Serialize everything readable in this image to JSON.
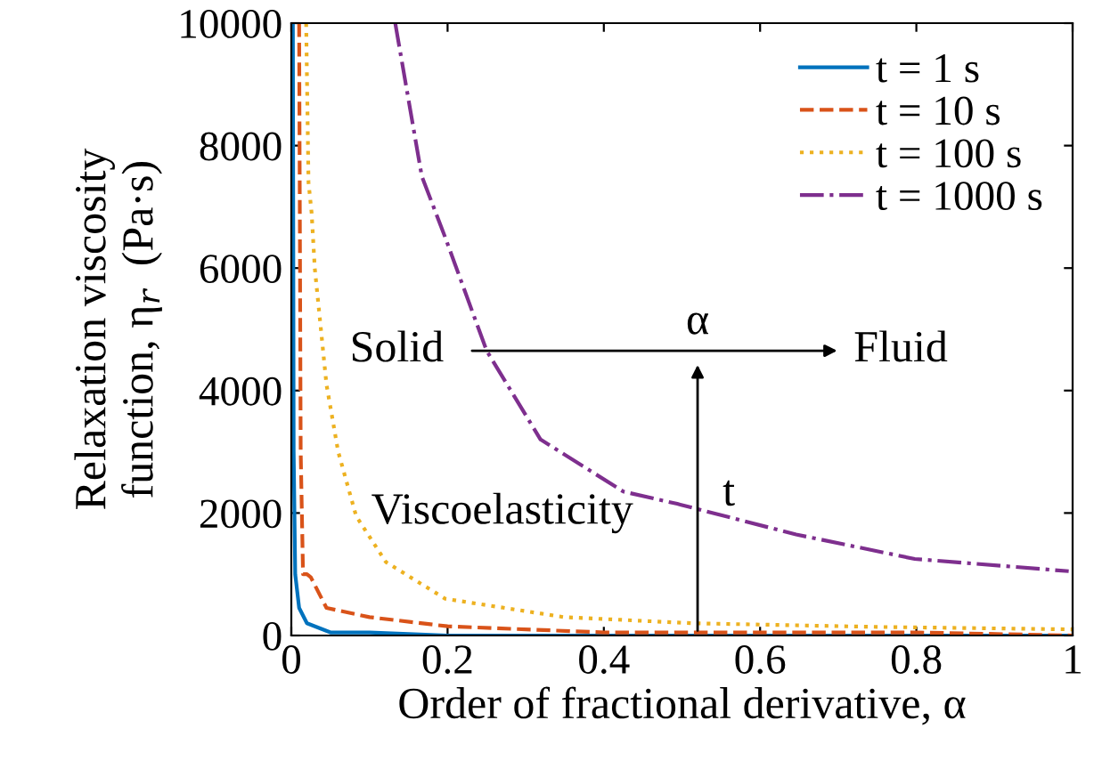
{
  "chart_data": {
    "type": "line",
    "xlabel": "Order of fractional derivative, α",
    "ylabel": "Relaxation viscosity\nfunction, η$_{r}$  (Pa·s)",
    "xlim": [
      0,
      1
    ],
    "ylim": [
      0,
      10000
    ],
    "xticks": [
      0,
      0.2,
      0.4,
      0.6,
      0.8,
      1
    ],
    "yticks": [
      0,
      2000,
      4000,
      6000,
      8000,
      10000
    ],
    "grid": false,
    "legend": "top right",
    "series": [
      {
        "name": "t = 1 s",
        "color": "#0072bd",
        "line_style": "solid",
        "x": [
          0.002,
          0.003,
          0.005,
          0.01,
          0.02,
          0.05,
          0.1,
          0.2,
          0.4,
          0.6,
          0.8,
          1
        ],
        "values": [
          10000,
          3000,
          1000,
          450,
          200,
          50,
          50,
          0,
          0,
          0,
          0,
          0
        ]
      },
      {
        "name": "t = 10 s",
        "color": "#d95319",
        "line_style": "dashed",
        "x": [
          0.01,
          0.012,
          0.015,
          0.02,
          0.025,
          0.045,
          0.1,
          0.2,
          0.4,
          0.6,
          0.8,
          1
        ],
        "values": [
          10000,
          3000,
          1000,
          1000,
          950,
          450,
          300,
          150,
          50,
          50,
          50,
          0
        ]
      },
      {
        "name": "t = 100 s",
        "color": "#edb120",
        "line_style": "dotted",
        "x": [
          0.019,
          0.022,
          0.026,
          0.03,
          0.045,
          0.06,
          0.083,
          0.121,
          0.197,
          0.349,
          0.514,
          0.75,
          1
        ],
        "values": [
          10000,
          7400,
          6900,
          6000,
          4100,
          3000,
          1950,
          1200,
          600,
          300,
          200,
          140,
          100
        ]
      },
      {
        "name": "t = 1000 s",
        "color": "#7e2f8e",
        "line_style": "dashdot",
        "x": [
          0.133,
          0.167,
          0.197,
          0.25,
          0.319,
          0.425,
          0.494,
          0.646,
          0.798,
          0.995
        ],
        "values": [
          10000,
          7500,
          6500,
          4650,
          3200,
          2350,
          2150,
          1650,
          1250,
          1050
        ]
      }
    ],
    "annotations": [
      "Solid",
      "Fluid",
      "α",
      "Viscoelasticity",
      "t"
    ]
  }
}
